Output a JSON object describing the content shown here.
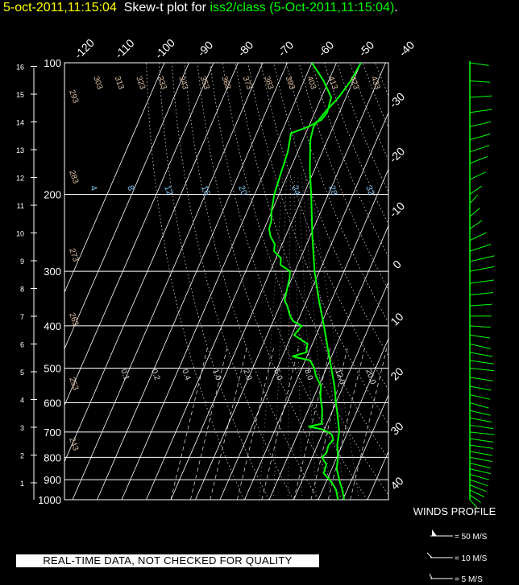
{
  "header": {
    "datetime": "5-oct-2011,11:15:04",
    "plot_label": "Skew-t plot for",
    "source": "iss2/class (5-Oct-2011,11:15:04)",
    "period": "."
  },
  "quality_note": "REAL-TIME DATA, NOT CHECKED FOR QUALITY",
  "winds_legend": {
    "title": "WINDS PROFILE",
    "items": [
      "= 50 M/S",
      "= 10 M/S",
      "= 5 M/S"
    ]
  },
  "colors": {
    "background": "#000000",
    "grid": "#ffffff",
    "temperature": "#00ff00",
    "header_time": "#ffff00",
    "header_source": "#00ff00",
    "mixing_ratio": "#7ec0ee",
    "theta": "#e0c0a0"
  },
  "chart_data": {
    "type": "skew-t",
    "pressure_levels": [
      100,
      200,
      300,
      400,
      500,
      600,
      700,
      800,
      900,
      1000
    ],
    "height_km_labels": [
      16,
      15,
      14,
      13,
      12,
      11,
      10,
      9,
      8,
      7,
      6,
      5,
      4,
      3,
      2,
      1
    ],
    "isotherm_top_labels": [
      "-120",
      "-110",
      "-100",
      "-90",
      "-80",
      "-70",
      "-60",
      "-50",
      "-40"
    ],
    "isotherm_right_labels": [
      "-30",
      "-20",
      "-10",
      "0",
      "10",
      "20",
      "30",
      "40"
    ],
    "theta_top_labels": [
      "303",
      "313",
      "323",
      "333",
      "343",
      "353",
      "363",
      "373",
      "383",
      "393",
      "403",
      "413",
      "423",
      "433"
    ],
    "theta_left_labels": [
      "293",
      "283",
      "273",
      "263",
      "253",
      "243"
    ],
    "theta_e_labels": [
      "4",
      "8",
      "12",
      "16",
      "20",
      "24",
      "28",
      "32"
    ],
    "mixing_ratio_labels": [
      "0.1",
      "0.2",
      "0.4",
      "1.0",
      "2.0",
      "5.0",
      "8.0",
      "12.0",
      "20.0"
    ],
    "temperature_profile": [
      [
        1000,
        10.5
      ],
      [
        950,
        8.0
      ],
      [
        900,
        5.0
      ],
      [
        850,
        2.0
      ],
      [
        800,
        0.5
      ],
      [
        750,
        -2.0
      ],
      [
        700,
        -3.5
      ],
      [
        650,
        -6.5
      ],
      [
        600,
        -10.0
      ],
      [
        550,
        -13.5
      ],
      [
        500,
        -18.0
      ],
      [
        450,
        -23.0
      ],
      [
        400,
        -28.5
      ],
      [
        350,
        -35.0
      ],
      [
        300,
        -42.0
      ],
      [
        250,
        -49.0
      ],
      [
        200,
        -57.0
      ],
      [
        175,
        -62.0
      ],
      [
        150,
        -67.0
      ],
      [
        140,
        -68.0
      ],
      [
        130,
        -66.0
      ],
      [
        120,
        -63.0
      ],
      [
        110,
        -61.0
      ],
      [
        100,
        -60.0
      ]
    ],
    "dewpoint_profile": [
      [
        1000,
        8.0
      ],
      [
        950,
        5.5
      ],
      [
        920,
        3.0
      ],
      [
        900,
        1.0
      ],
      [
        870,
        -2.5
      ],
      [
        830,
        -3.0
      ],
      [
        800,
        -6.0
      ],
      [
        780,
        -5.0
      ],
      [
        750,
        -5.5
      ],
      [
        730,
        -4.5
      ],
      [
        710,
        -6.0
      ],
      [
        700,
        -8.0
      ],
      [
        690,
        -11.0
      ],
      [
        680,
        -17.0
      ],
      [
        670,
        -12.0
      ],
      [
        650,
        -13.0
      ],
      [
        620,
        -14.5
      ],
      [
        600,
        -16.0
      ],
      [
        580,
        -17.5
      ],
      [
        550,
        -19.0
      ],
      [
        520,
        -23.0
      ],
      [
        500,
        -25.0
      ],
      [
        480,
        -28.0
      ],
      [
        470,
        -36.0
      ],
      [
        460,
        -31.0
      ],
      [
        440,
        -32.0
      ],
      [
        420,
        -39.0
      ],
      [
        400,
        -37.5
      ],
      [
        390,
        -42.0
      ],
      [
        380,
        -44.0
      ],
      [
        360,
        -47.0
      ],
      [
        350,
        -49.0
      ],
      [
        330,
        -50.0
      ],
      [
        310,
        -51.0
      ],
      [
        300,
        -52.0
      ],
      [
        290,
        -57.0
      ],
      [
        280,
        -58.0
      ],
      [
        270,
        -62.0
      ],
      [
        260,
        -63.0
      ],
      [
        250,
        -66.0
      ],
      [
        240,
        -68.0
      ],
      [
        230,
        -68.5
      ],
      [
        220,
        -70.0
      ],
      [
        200,
        -72.0
      ],
      [
        180,
        -73.0
      ],
      [
        160,
        -74.0
      ],
      [
        145,
        -76.0
      ],
      [
        140,
        -70.0
      ],
      [
        135,
        -66.0
      ],
      [
        130,
        -65.0
      ],
      [
        120,
        -66.0
      ],
      [
        110,
        -72.0
      ],
      [
        100,
        -80.0
      ]
    ],
    "wind_profile": [
      [
        1000,
        6,
        200
      ],
      [
        975,
        9,
        210
      ],
      [
        950,
        10,
        220
      ],
      [
        925,
        11,
        225
      ],
      [
        900,
        12,
        230
      ],
      [
        875,
        12,
        235
      ],
      [
        850,
        13,
        240
      ],
      [
        825,
        13,
        240
      ],
      [
        800,
        14,
        245
      ],
      [
        775,
        14,
        245
      ],
      [
        750,
        15,
        250
      ],
      [
        725,
        15,
        250
      ],
      [
        700,
        16,
        255
      ],
      [
        675,
        15,
        250
      ],
      [
        650,
        14,
        245
      ],
      [
        625,
        13,
        240
      ],
      [
        600,
        11,
        235
      ],
      [
        575,
        12,
        240
      ],
      [
        550,
        12,
        245
      ],
      [
        525,
        14,
        250
      ],
      [
        500,
        15,
        255
      ],
      [
        480,
        16,
        250
      ],
      [
        460,
        15,
        245
      ],
      [
        440,
        13,
        240
      ],
      [
        420,
        8,
        250
      ],
      [
        400,
        7,
        260
      ],
      [
        380,
        8,
        270
      ],
      [
        360,
        10,
        280
      ],
      [
        340,
        13,
        285
      ],
      [
        320,
        16,
        290
      ],
      [
        300,
        19,
        295
      ],
      [
        285,
        22,
        300
      ],
      [
        270,
        20,
        310
      ],
      [
        255,
        17,
        320
      ],
      [
        240,
        14,
        330
      ],
      [
        225,
        12,
        335
      ],
      [
        210,
        11,
        340
      ],
      [
        200,
        12,
        330
      ],
      [
        185,
        14,
        320
      ],
      [
        170,
        15,
        315
      ],
      [
        160,
        16,
        310
      ],
      [
        150,
        15,
        305
      ],
      [
        140,
        14,
        300
      ],
      [
        130,
        12,
        290
      ],
      [
        120,
        10,
        280
      ],
      [
        110,
        6,
        260
      ],
      [
        100,
        5,
        250
      ]
    ],
    "xlabel": "",
    "ylabel": ""
  }
}
